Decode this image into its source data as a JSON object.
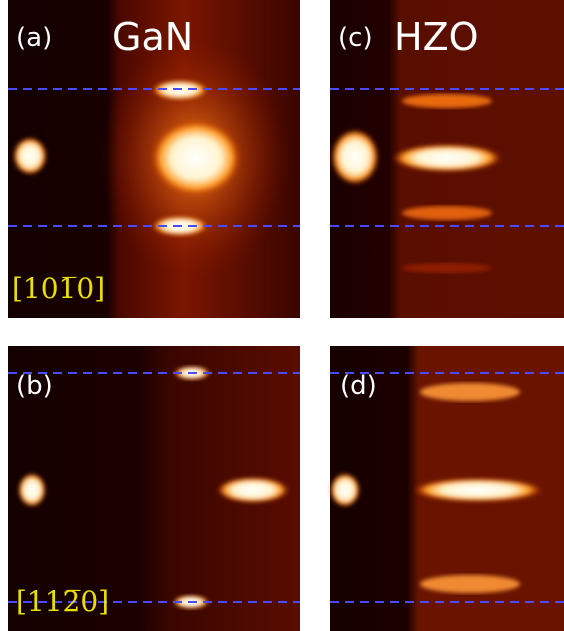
{
  "panels": [
    {
      "label": "(a)",
      "title": "GaN",
      "direction": "[101̅0]"
    },
    {
      "label": "(c)",
      "title": "HZO"
    },
    {
      "label": "(b)",
      "direction": "[112̅0]"
    },
    {
      "label": "(d)"
    }
  ]
}
